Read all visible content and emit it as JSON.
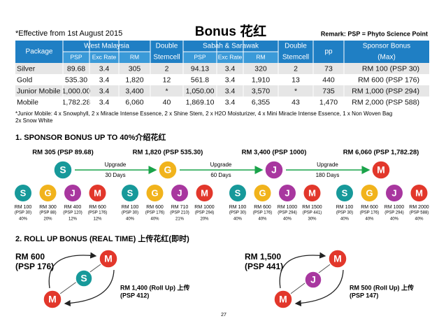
{
  "header": {
    "effective": "*Effective from 1st August 2015",
    "title": "Bonus 花红",
    "remark": "Remark: PSP = Phyto Science Point"
  },
  "table": {
    "package": "Package",
    "regions": [
      {
        "name": "West Malaysia",
        "columns": [
          "PSP",
          "Exc Rate",
          "RM"
        ],
        "double": [
          "Double",
          "Stemcell"
        ]
      },
      {
        "name": "Sabah & Sarawak",
        "columns": [
          "PSP",
          "Exc Rate",
          "RM"
        ],
        "double": [
          "Double",
          "Stemcell"
        ]
      }
    ],
    "pp": "pp",
    "bonus": [
      "Sponsor Bonus",
      "(Max)"
    ],
    "rows": [
      [
        "Silver",
        "89.68",
        "3.4",
        "305",
        "2",
        "94.13",
        "3.4",
        "320",
        "2",
        "73",
        "RM 100 (PSP 30)"
      ],
      [
        "Gold",
        "535.30",
        "3.4",
        "1,820",
        "12",
        "561.8",
        "3.4",
        "1,910",
        "13",
        "440",
        "RM 600 (PSP 176)"
      ],
      [
        "Junior Mobile",
        "1,000.00",
        "3.4",
        "3,400",
        "*",
        "1,050.00",
        "3.4",
        "3,570",
        "*",
        "735",
        "RM 1,000 (PSP 294)"
      ],
      [
        "Mobile",
        "1,782.28",
        "3.4",
        "6,060",
        "40",
        "1,869.10",
        "3.4",
        "6,355",
        "43",
        "1,470",
        "RM 2,000 (PSP 588)"
      ]
    ]
  },
  "footnote": [
    "*Junior Mobile: 4 x Snowphyll, 2 x Miracle Intense Essence, 2 x Shine Stem, 2 x H2O Moisturizer, 4 x Mini Miracle Intense Essence, 1 x Non Woven Bag",
    "2x Snow White"
  ],
  "section1": {
    "heading": "1. SPONSOR BONUS UP TO 40%介绍花红",
    "levels": [
      {
        "label": "RM 305 (PSP 89.68)",
        "letter": "S"
      },
      {
        "label": "RM 1,820 (PSP 535.30)",
        "letter": "G"
      },
      {
        "label": "RM 3,400 (PSP 1000)",
        "letter": "J"
      },
      {
        "label": "RM 6,060 (PSP 1,782.28)",
        "letter": "M"
      }
    ],
    "upgrades": [
      {
        "text": "Upgrade",
        "days": "30 Days"
      },
      {
        "text": "Upgrade",
        "days": "60 Days"
      },
      {
        "text": "Upgrade",
        "days": "180 Days"
      }
    ],
    "groups": [
      [
        {
          "letter": "S",
          "rm": "RM 100",
          "psp": "(PSP 30)",
          "pct": "40%"
        },
        {
          "letter": "G",
          "rm": "RM 300",
          "psp": "(PSP 88)",
          "pct": "20%"
        },
        {
          "letter": "J",
          "rm": "RM 400",
          "psp": "(PSP 120)",
          "pct": "12%"
        },
        {
          "letter": "M",
          "rm": "RM 600",
          "psp": "(PSP 176)",
          "pct": "12%"
        }
      ],
      [
        {
          "letter": "S",
          "rm": "RM 100",
          "psp": "(PSP 30)",
          "pct": "40%"
        },
        {
          "letter": "G",
          "rm": "RM 600",
          "psp": "(PSP 176)",
          "pct": "40%"
        },
        {
          "letter": "J",
          "rm": "RM 710",
          "psp": "(PSP 210)",
          "pct": "21%"
        },
        {
          "letter": "M",
          "rm": "RM 1000",
          "psp": "(PSP 294)",
          "pct": "20%"
        }
      ],
      [
        {
          "letter": "S",
          "rm": "RM 100",
          "psp": "(PSP 30)",
          "pct": "40%"
        },
        {
          "letter": "G",
          "rm": "RM 600",
          "psp": "(PSP 176)",
          "pct": "40%"
        },
        {
          "letter": "J",
          "rm": "RM 1000",
          "psp": "(PSP 294)",
          "pct": "40%"
        },
        {
          "letter": "M",
          "rm": "RM 1500",
          "psp": "(PSP 441)",
          "pct": "30%"
        }
      ],
      [
        {
          "letter": "S",
          "rm": "RM 100",
          "psp": "(PSP 30)",
          "pct": "40%"
        },
        {
          "letter": "G",
          "rm": "RM 600",
          "psp": "(PSP 176)",
          "pct": "40%"
        },
        {
          "letter": "J",
          "rm": "RM 1000",
          "psp": "(PSP 294)",
          "pct": "40%"
        },
        {
          "letter": "M",
          "rm": "RM 2000",
          "psp": "(PSP 588)",
          "pct": "40%"
        }
      ]
    ]
  },
  "section2": {
    "heading": "2. ROLL UP BONUS (REAL TIME) 上传花红(即时)",
    "examples": [
      {
        "amount": [
          "RM 600",
          "(PSP 176)"
        ],
        "letters": [
          "M",
          "S",
          "M"
        ],
        "rollup": [
          "RM 1,400 (Roll Up) 上传",
          "(PSP 412)"
        ]
      },
      {
        "amount": [
          "RM 1,500",
          "(PSP 441)"
        ],
        "letters": [
          "M",
          "J",
          "M"
        ],
        "rollup": [
          "RM 500 (Roll Up) 上传",
          "(PSP 147)"
        ]
      }
    ]
  },
  "page_number": "27"
}
